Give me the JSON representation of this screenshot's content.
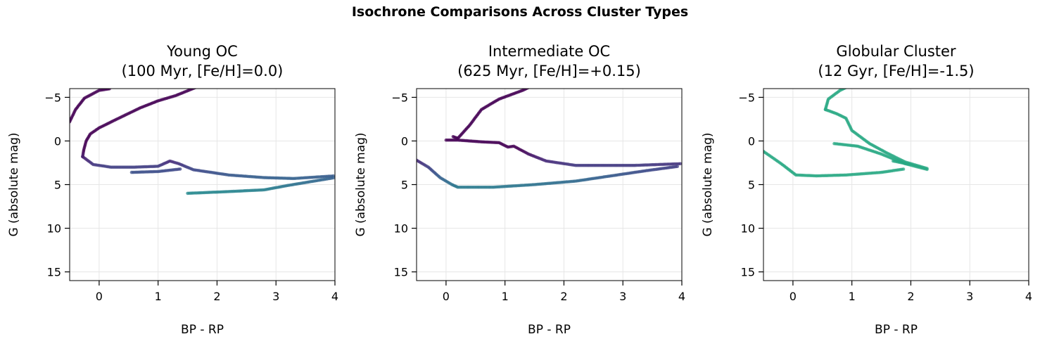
{
  "figure": {
    "suptitle": "Isochrone Comparisons Across Cluster Types"
  },
  "chart_data": [
    {
      "type": "scatter",
      "title_line1": "Young OC",
      "title_line2": "(100 Myr, [Fe/H]=0.0)",
      "xlabel": "BP - RP",
      "ylabel": "G (absolute mag)",
      "xlim": [
        -0.5,
        4
      ],
      "ylim": [
        16,
        -6
      ],
      "y_inverted": true,
      "xticks": [
        0,
        1,
        2,
        3,
        4
      ],
      "xtick_labels": [
        "0",
        "1",
        "2",
        "3",
        "4"
      ],
      "yticks": [
        -5,
        0,
        5,
        10,
        15
      ],
      "ytick_labels": [
        "−5",
        "0",
        "5",
        "10",
        "15"
      ],
      "grid": true,
      "colormap": "viridis",
      "tracks": [
        {
          "segment": "upper-main-sequence",
          "points": [
            [
              -0.5,
              -2.2
            ],
            [
              -0.4,
              -3.6
            ],
            [
              -0.25,
              -4.9
            ],
            [
              0.0,
              -5.8
            ],
            [
              0.2,
              -6.0
            ]
          ]
        },
        {
          "segment": "main-sequence",
          "points": [
            [
              -0.28,
              1.8
            ],
            [
              -0.26,
              1.0
            ],
            [
              -0.22,
              0.0
            ],
            [
              -0.15,
              -0.8
            ],
            [
              0.0,
              -1.5
            ],
            [
              0.3,
              -2.5
            ],
            [
              0.7,
              -3.8
            ],
            [
              1.0,
              -4.6
            ],
            [
              1.3,
              -5.2
            ],
            [
              1.7,
              -6.3
            ],
            [
              2.05,
              -8.6
            ]
          ]
        },
        {
          "segment": "giant-branch",
          "points": [
            [
              -0.28,
              1.8
            ],
            [
              -0.1,
              2.7
            ],
            [
              0.2,
              3.0
            ],
            [
              0.6,
              3.0
            ],
            [
              1.0,
              2.9
            ],
            [
              1.2,
              2.3
            ],
            [
              1.35,
              2.6
            ],
            [
              1.6,
              3.3
            ],
            [
              2.2,
              3.9
            ],
            [
              2.8,
              4.2
            ],
            [
              3.3,
              4.3
            ],
            [
              4.0,
              4.0
            ]
          ]
        },
        {
          "segment": "blue-loop",
          "points": [
            [
              0.55,
              3.6
            ],
            [
              1.0,
              3.5
            ],
            [
              1.4,
              3.2
            ]
          ]
        },
        {
          "segment": "agb",
          "points": [
            [
              1.5,
              6.0
            ],
            [
              2.2,
              5.8
            ],
            [
              2.8,
              5.6
            ],
            [
              3.2,
              5.1
            ],
            [
              4.0,
              4.2
            ]
          ]
        }
      ]
    },
    {
      "type": "scatter",
      "title_line1": "Intermediate OC",
      "title_line2": "(625 Myr, [Fe/H]=+0.15)",
      "xlabel": "BP - RP",
      "ylabel": "G (absolute mag)",
      "xlim": [
        -0.5,
        4
      ],
      "ylim": [
        16,
        -6
      ],
      "y_inverted": true,
      "xticks": [
        0,
        1,
        2,
        3,
        4
      ],
      "xtick_labels": [
        "0",
        "1",
        "2",
        "3",
        "4"
      ],
      "yticks": [
        -5,
        0,
        5,
        10,
        15
      ],
      "ytick_labels": [
        "−5",
        "0",
        "5",
        "10",
        "15"
      ],
      "grid": true,
      "colormap": "viridis",
      "tracks": [
        {
          "segment": "main-sequence",
          "points": [
            [
              0.12,
              -0.5
            ],
            [
              0.2,
              -0.3
            ],
            [
              0.4,
              -1.8
            ],
            [
              0.6,
              -3.6
            ],
            [
              0.9,
              -4.8
            ],
            [
              1.3,
              -5.8
            ],
            [
              1.8,
              -7.4
            ],
            [
              2.2,
              -8.9
            ]
          ]
        },
        {
          "segment": "turnoff-hook",
          "points": [
            [
              0.0,
              -0.1
            ],
            [
              0.2,
              -0.1
            ],
            [
              0.6,
              0.1
            ],
            [
              0.9,
              0.2
            ],
            [
              1.05,
              0.7
            ],
            [
              1.15,
              0.6
            ]
          ]
        },
        {
          "segment": "giant-branch",
          "points": [
            [
              1.15,
              0.6
            ],
            [
              1.4,
              1.5
            ],
            [
              1.7,
              2.3
            ],
            [
              2.2,
              2.8
            ],
            [
              2.7,
              2.8
            ],
            [
              3.2,
              2.8
            ],
            [
              4.0,
              2.6
            ]
          ]
        },
        {
          "segment": "upper-main-sequence",
          "points": [
            [
              -0.5,
              2.2
            ],
            [
              -0.3,
              3.0
            ],
            [
              -0.1,
              4.2
            ],
            [
              0.1,
              5.0
            ],
            [
              0.2,
              5.3
            ]
          ]
        },
        {
          "segment": "agb",
          "points": [
            [
              0.2,
              5.3
            ],
            [
              0.8,
              5.3
            ],
            [
              1.5,
              5.0
            ],
            [
              2.2,
              4.6
            ],
            [
              2.8,
              4.0
            ],
            [
              3.4,
              3.4
            ],
            [
              3.95,
              2.9
            ]
          ]
        }
      ]
    },
    {
      "type": "scatter",
      "title_line1": "Globular Cluster",
      "title_line2": "(12 Gyr, [Fe/H]=-1.5)",
      "xlabel": "BP - RP",
      "ylabel": "G (absolute mag)",
      "xlim": [
        -0.5,
        4
      ],
      "ylim": [
        16,
        -6
      ],
      "y_inverted": true,
      "xticks": [
        0,
        1,
        2,
        3,
        4
      ],
      "xtick_labels": [
        "0",
        "1",
        "2",
        "3",
        "4"
      ],
      "yticks": [
        -5,
        0,
        5,
        10,
        15
      ],
      "ytick_labels": [
        "−5",
        "0",
        "5",
        "10",
        "15"
      ],
      "grid": true,
      "colormap": "viridis",
      "tracks": [
        {
          "segment": "main-sequence",
          "points": [
            [
              0.55,
              -3.6
            ],
            [
              0.6,
              -4.8
            ],
            [
              0.8,
              -5.8
            ],
            [
              1.05,
              -6.6
            ],
            [
              1.3,
              -7.4
            ]
          ]
        },
        {
          "segment": "subgiant-giant-branch",
          "points": [
            [
              0.55,
              -3.6
            ],
            [
              0.75,
              -3.1
            ],
            [
              0.9,
              -2.6
            ],
            [
              1.0,
              -1.2
            ],
            [
              1.3,
              0.3
            ],
            [
              1.6,
              1.4
            ],
            [
              1.9,
              2.4
            ],
            [
              2.3,
              3.2
            ]
          ]
        },
        {
          "segment": "horizontal-branch",
          "points": [
            [
              -0.5,
              1.2
            ],
            [
              -0.2,
              2.6
            ],
            [
              0.05,
              3.9
            ],
            [
              0.4,
              4.0
            ],
            [
              0.9,
              3.9
            ],
            [
              1.5,
              3.6
            ],
            [
              1.9,
              3.2
            ]
          ]
        },
        {
          "segment": "agb",
          "points": [
            [
              0.7,
              0.3
            ],
            [
              1.1,
              0.6
            ],
            [
              1.5,
              1.5
            ],
            [
              1.9,
              2.6
            ],
            [
              2.3,
              3.3
            ]
          ]
        },
        {
          "segment": "red-clump",
          "points": [
            [
              1.7,
              2.3
            ],
            [
              2.0,
              2.7
            ]
          ]
        }
      ]
    }
  ]
}
